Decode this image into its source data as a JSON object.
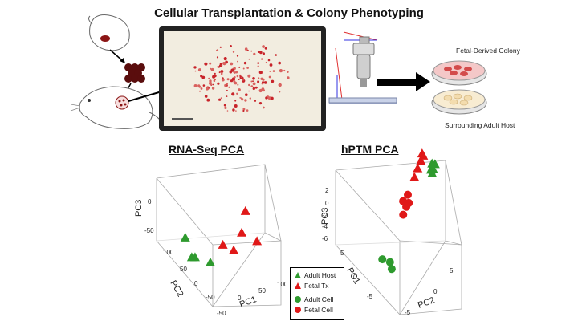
{
  "header": {
    "title": "Cellular Transplantation & Colony Phenotyping"
  },
  "workflow": {
    "fetal_colony_label": "Fetal-Derived Colony",
    "adult_host_label": "Surrounding Adult Host"
  },
  "panels": {
    "rna_title": "RNA-Seq PCA",
    "hptm_title": "hPTM PCA"
  },
  "legend": {
    "items": [
      {
        "label": "Adult Host",
        "shape": "triangle",
        "color": "#2e9a2e"
      },
      {
        "label": "Fetal Tx",
        "shape": "triangle",
        "color": "#e01818"
      },
      {
        "label": "Adult Cell",
        "shape": "circle",
        "color": "#2e9a2e"
      },
      {
        "label": "Fetal Cell",
        "shape": "circle",
        "color": "#e01818"
      }
    ]
  },
  "chart_data": [
    {
      "type": "scatter",
      "title": "RNA-Seq PCA",
      "axes": [
        "PC1",
        "PC2",
        "PC3"
      ],
      "tick_labels": {
        "pc3": [
          "0",
          "-50"
        ],
        "pc2": [
          "100",
          "50",
          "0",
          "-50"
        ],
        "pc1": [
          "100",
          "50",
          "0",
          "-50"
        ]
      },
      "series": [
        {
          "name": "Adult Host",
          "shape": "triangle",
          "color": "#2e9a2e",
          "points": [
            [
              -40,
              20,
              5
            ],
            [
              -25,
              10,
              -30
            ],
            [
              0,
              0,
              -45
            ],
            [
              -50,
              -60,
              -50
            ]
          ]
        },
        {
          "name": "Fetal Tx",
          "shape": "triangle",
          "color": "#e01818",
          "points": [
            [
              80,
              60,
              40
            ],
            [
              65,
              30,
              0
            ],
            [
              90,
              20,
              -20
            ],
            [
              45,
              10,
              -30
            ],
            [
              20,
              -10,
              -25
            ]
          ]
        }
      ]
    },
    {
      "type": "scatter",
      "title": "hPTM PCA",
      "axes": [
        "PC1",
        "PC2",
        "PC3"
      ],
      "tick_labels": {
        "pc3": [
          "2",
          "0",
          "-2",
          "-4",
          "-6"
        ],
        "pc1": [
          "5",
          "0",
          "-5"
        ],
        "pc2": [
          "5",
          "0",
          "-5"
        ]
      },
      "series": [
        {
          "name": "Adult Host",
          "shape": "triangle",
          "color": "#2e9a2e",
          "points": [
            [
              -4,
              2,
              2.5
            ],
            [
              -3.5,
              2.3,
              2.6
            ],
            [
              -3,
              2.1,
              2.4
            ],
            [
              -2.5,
              2.4,
              2.7
            ],
            [
              -3.2,
              2.6,
              2.9
            ]
          ]
        },
        {
          "name": "Fetal Tx",
          "shape": "triangle",
          "color": "#e01818",
          "points": [
            [
              1,
              2,
              2.2
            ],
            [
              1.5,
              2.3,
              1.8
            ],
            [
              2,
              2.1,
              1.2
            ],
            [
              2.5,
              1.8,
              0.4
            ],
            [
              3,
              1.5,
              -0.5
            ]
          ]
        },
        {
          "name": "Adult Cell",
          "shape": "circle",
          "color": "#2e9a2e",
          "points": [
            [
              -5,
              -4,
              -4
            ],
            [
              -3,
              -4.5,
              -4.5
            ],
            [
              -4,
              -3.5,
              -5
            ]
          ]
        },
        {
          "name": "Fetal Cell",
          "shape": "circle",
          "color": "#e01818",
          "points": [
            [
              4,
              1,
              -3
            ],
            [
              4.5,
              0.8,
              -3.5
            ],
            [
              5,
              0.5,
              -3.2
            ],
            [
              5.2,
              1.2,
              -2.8
            ],
            [
              4.2,
              0.3,
              -4
            ]
          ]
        }
      ]
    }
  ]
}
